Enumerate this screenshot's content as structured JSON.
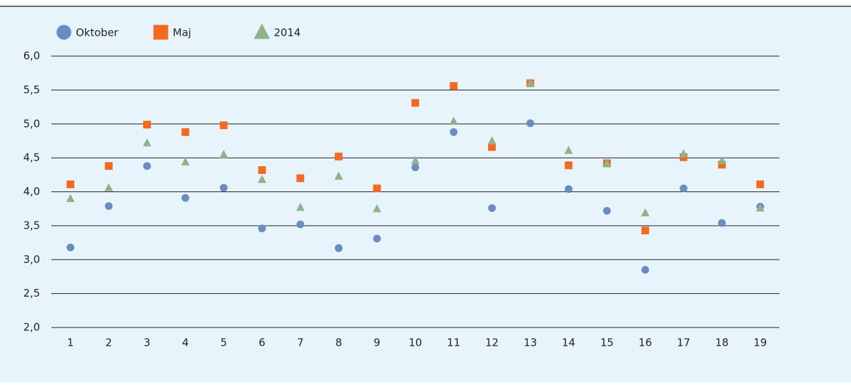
{
  "chart_data": {
    "type": "scatter",
    "legend": "top-left",
    "grid": true,
    "categories": [
      "1",
      "2",
      "3",
      "4",
      "5",
      "6",
      "7",
      "8",
      "9",
      "10",
      "11",
      "12",
      "13",
      "14",
      "15",
      "16",
      "17",
      "18",
      "19"
    ],
    "ylim": [
      2,
      6
    ],
    "yticks": [
      {
        "value": 2,
        "label": "2,0"
      },
      {
        "value": 2.5,
        "label": "2,5"
      },
      {
        "value": 3,
        "label": "3,0"
      },
      {
        "value": 3.5,
        "label": "3,5"
      },
      {
        "value": 4,
        "label": "4,0"
      },
      {
        "value": 4.5,
        "label": "4,5"
      },
      {
        "value": 5,
        "label": "5,0"
      },
      {
        "value": 5.5,
        "label": "5,5"
      },
      {
        "value": 6,
        "label": "6,0"
      }
    ],
    "series": [
      {
        "name": "Oktober",
        "color": "#6a8cc0",
        "marker": "circle",
        "values": [
          3.18,
          3.79,
          4.38,
          3.91,
          4.06,
          3.46,
          3.52,
          3.17,
          3.31,
          4.36,
          4.88,
          3.76,
          5.01,
          4.04,
          3.72,
          2.85,
          4.05,
          3.54,
          3.78
        ]
      },
      {
        "name": "Maj",
        "color": "#f26a22",
        "marker": "square",
        "values": [
          4.11,
          4.38,
          4.99,
          4.88,
          4.98,
          4.32,
          4.2,
          4.52,
          4.05,
          5.31,
          5.56,
          4.66,
          5.6,
          4.39,
          4.42,
          3.43,
          4.51,
          4.4,
          4.11
        ]
      },
      {
        "name": "2014",
        "color": "#8fb38a",
        "marker": "triangle",
        "values": [
          3.9,
          4.06,
          4.72,
          4.44,
          4.55,
          4.18,
          3.77,
          4.23,
          3.75,
          4.46,
          5.04,
          4.75,
          5.6,
          4.61,
          4.42,
          3.69,
          4.56,
          4.46,
          3.76
        ]
      }
    ]
  }
}
